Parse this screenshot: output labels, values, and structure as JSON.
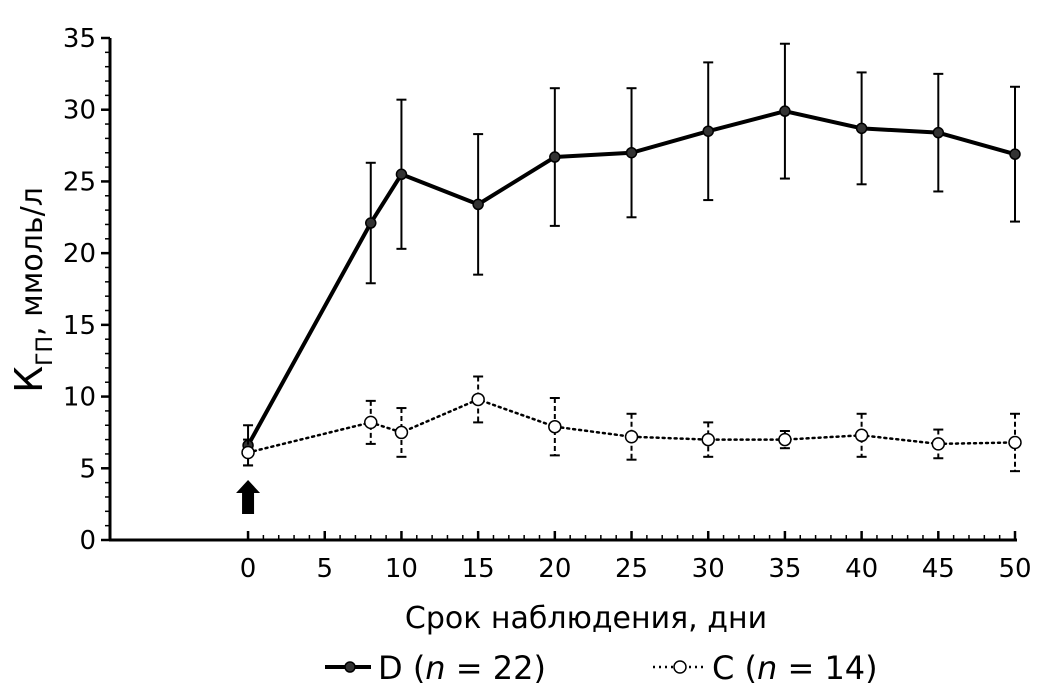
{
  "chart_data": {
    "type": "line",
    "xlabel": "Срок наблюдения, дни",
    "ylabel": {
      "main": "К",
      "subscript": "ГП",
      "rest": ", ммоль/л"
    },
    "xlim": [
      -9,
      50
    ],
    "ylim": [
      0,
      35
    ],
    "xticks": [
      0,
      5,
      10,
      15,
      20,
      25,
      30,
      35,
      40,
      45,
      50
    ],
    "yticks": [
      0,
      5,
      10,
      15,
      20,
      25,
      30,
      35
    ],
    "grid": false,
    "legend_position": "bottom",
    "start_marker": {
      "x": 0,
      "shape": "up-arrow"
    },
    "series": [
      {
        "name": "D",
        "n_label": "n",
        "n_value": "22",
        "style": "solid",
        "marker": "filled-circle",
        "color": "#000000",
        "points": [
          {
            "x": 0,
            "y": 6.6,
            "err": 1.4
          },
          {
            "x": 8,
            "y": 22.1,
            "err": 4.2
          },
          {
            "x": 10,
            "y": 25.5,
            "err": 5.2
          },
          {
            "x": 15,
            "y": 23.4,
            "err": 4.9
          },
          {
            "x": 20,
            "y": 26.7,
            "err": 4.8
          },
          {
            "x": 25,
            "y": 27.0,
            "err": 4.5
          },
          {
            "x": 30,
            "y": 28.5,
            "err": 4.8
          },
          {
            "x": 35,
            "y": 29.9,
            "err": 4.7
          },
          {
            "x": 40,
            "y": 28.7,
            "err": 3.9
          },
          {
            "x": 45,
            "y": 28.4,
            "err": 4.1
          },
          {
            "x": 50,
            "y": 26.9,
            "err": 4.7
          }
        ]
      },
      {
        "name": "C",
        "n_label": "n",
        "n_value": "14",
        "style": "dotted",
        "marker": "open-circle",
        "color": "#000000",
        "points": [
          {
            "x": 0,
            "y": 6.1,
            "err": 0.9
          },
          {
            "x": 8,
            "y": 8.2,
            "err": 1.5
          },
          {
            "x": 10,
            "y": 7.5,
            "err": 1.7
          },
          {
            "x": 15,
            "y": 9.8,
            "err": 1.6
          },
          {
            "x": 20,
            "y": 7.9,
            "err": 2.0
          },
          {
            "x": 25,
            "y": 7.2,
            "err": 1.6
          },
          {
            "x": 30,
            "y": 7.0,
            "err": 1.2
          },
          {
            "x": 35,
            "y": 7.0,
            "err": 0.6
          },
          {
            "x": 40,
            "y": 7.3,
            "err": 1.5
          },
          {
            "x": 45,
            "y": 6.7,
            "err": 1.0
          },
          {
            "x": 50,
            "y": 6.8,
            "err": 2.0
          }
        ]
      }
    ]
  }
}
